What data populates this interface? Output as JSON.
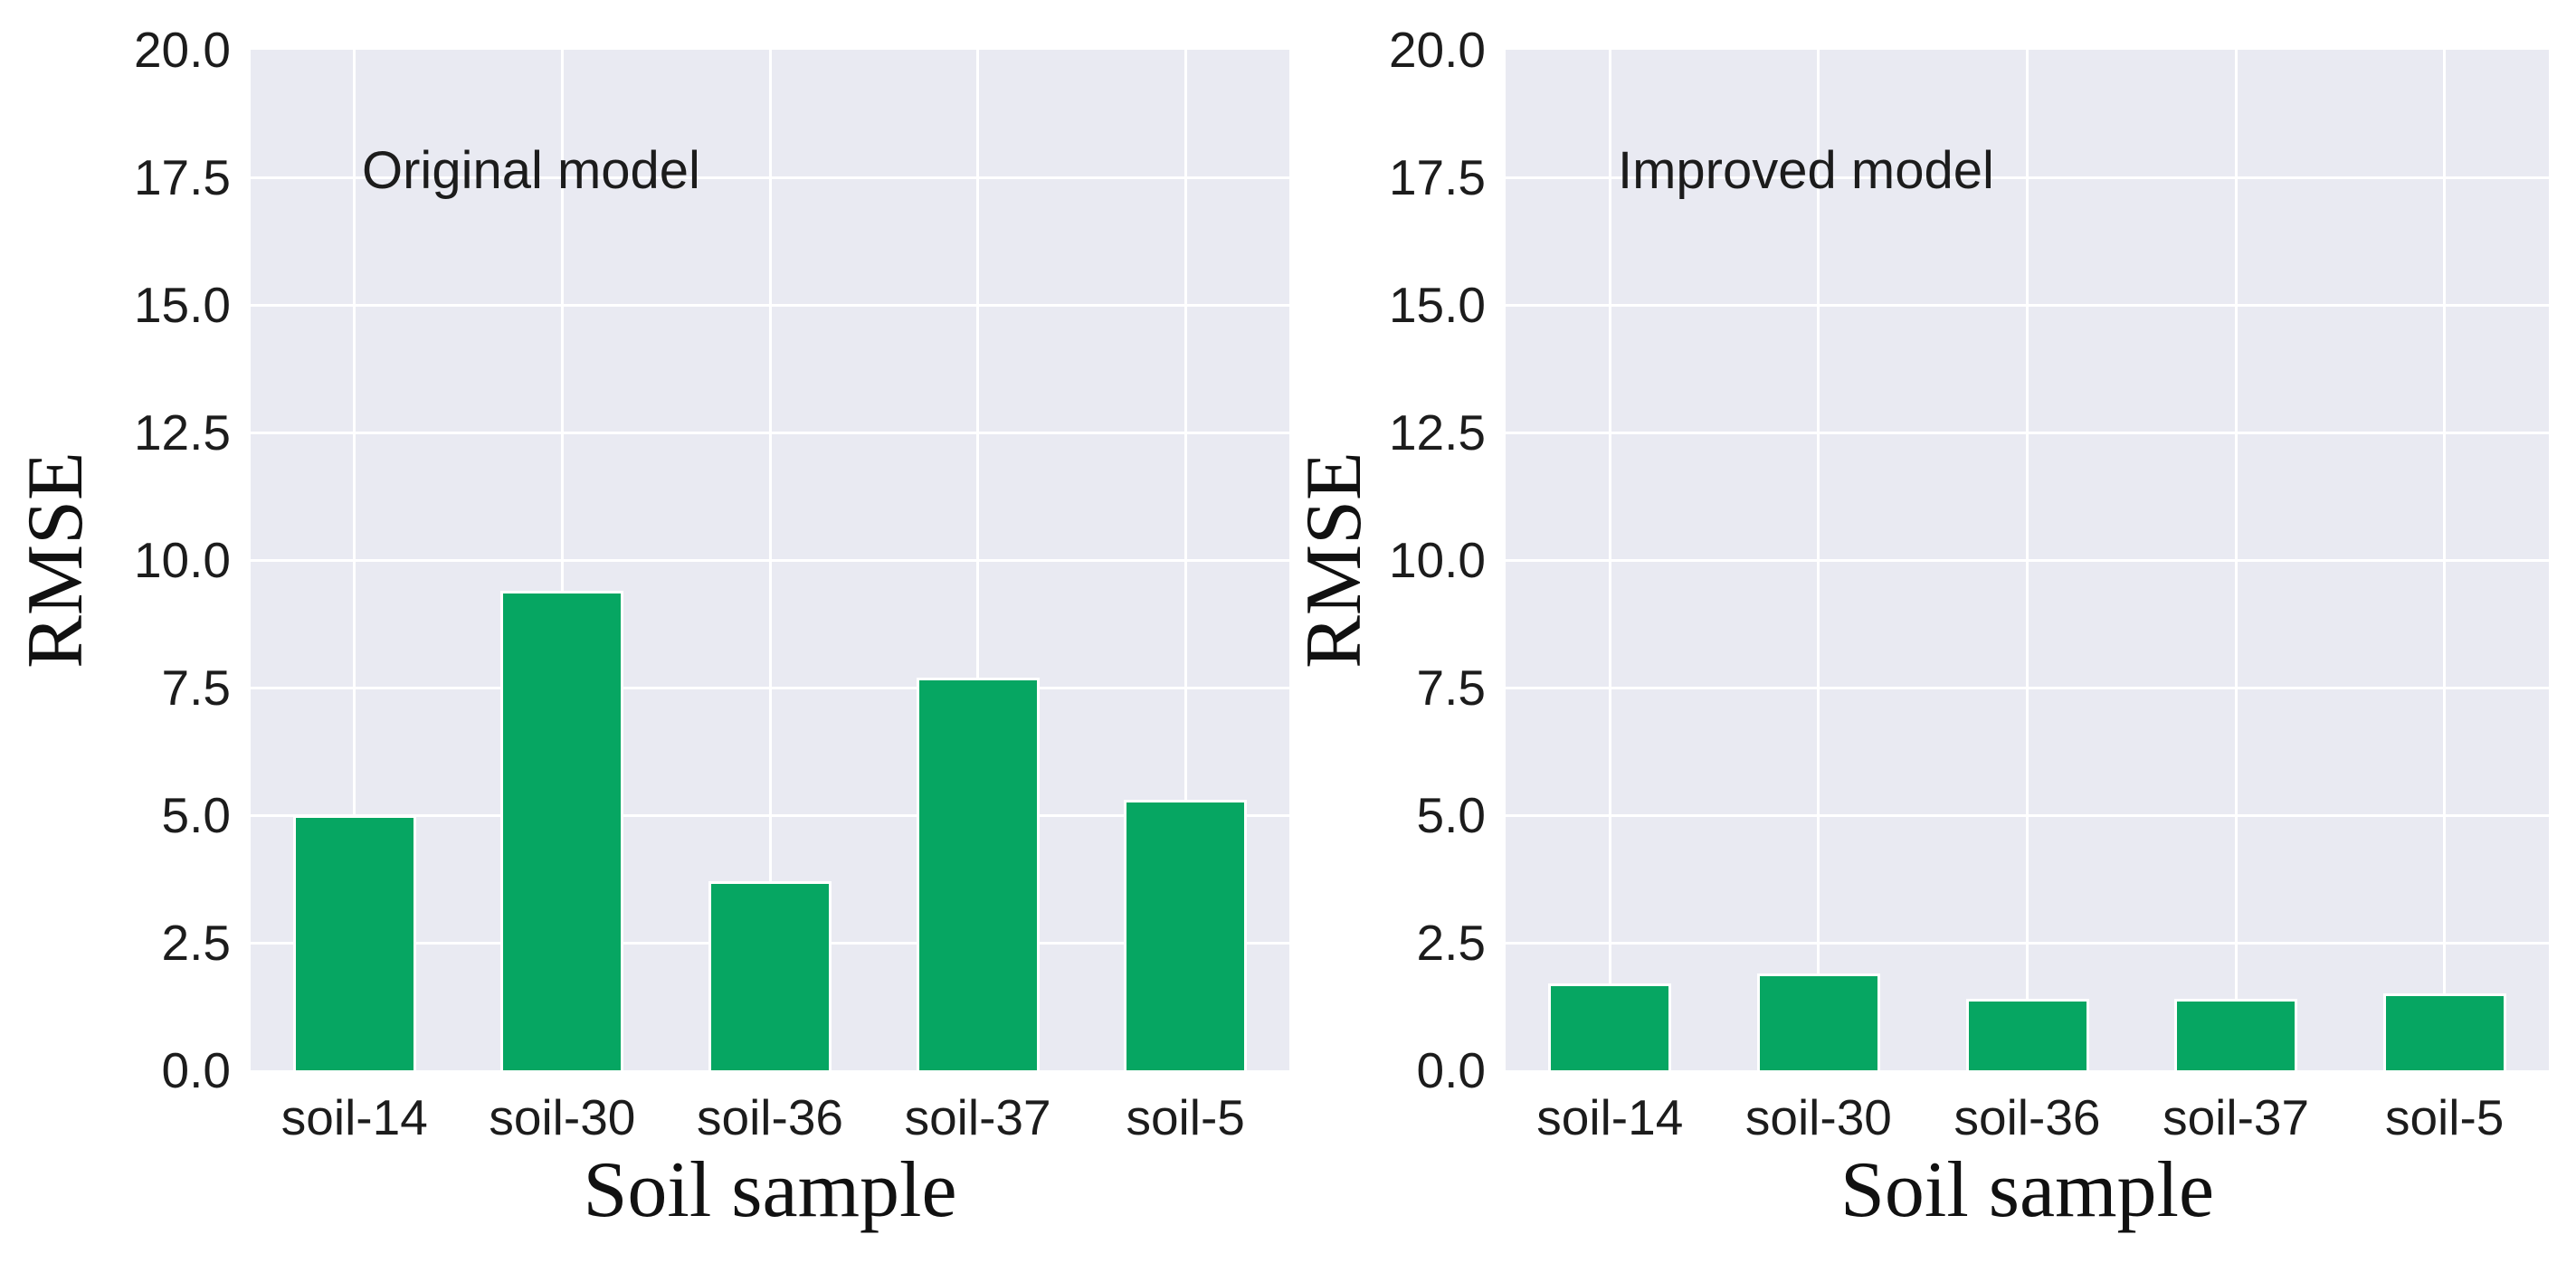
{
  "figure": {
    "plot_background": "#e9eaf2",
    "grid_color": "#ffffff",
    "bar_fill_color": "#06a662",
    "bar_edge_color": "#ffffff",
    "tick_text_color": "#1c1c1c",
    "label_text_color": "#111111"
  },
  "chart_data": [
    {
      "type": "bar",
      "annotation": "Original model",
      "categories": [
        "soil-14",
        "soil-30",
        "soil-36",
        "soil-37",
        "soil-5"
      ],
      "values": [
        5.0,
        9.4,
        3.7,
        7.7,
        5.3
      ],
      "xlabel": "Soil sample",
      "ylabel": "RMSE",
      "ylim": [
        0,
        20
      ],
      "yticks": [
        "0.0",
        "2.5",
        "5.0",
        "7.5",
        "10.0",
        "12.5",
        "15.0",
        "17.5",
        "20.0"
      ],
      "grid": true,
      "legend_position": "none"
    },
    {
      "type": "bar",
      "annotation": "Improved model",
      "categories": [
        "soil-14",
        "soil-30",
        "soil-36",
        "soil-37",
        "soil-5"
      ],
      "values": [
        1.7,
        1.9,
        1.4,
        1.4,
        1.5
      ],
      "xlabel": "Soil sample",
      "ylabel": "RMSE",
      "ylim": [
        0,
        20
      ],
      "yticks": [
        "0.0",
        "2.5",
        "5.0",
        "7.5",
        "10.0",
        "12.5",
        "15.0",
        "17.5",
        "20.0"
      ],
      "grid": true,
      "legend_position": "none"
    }
  ]
}
